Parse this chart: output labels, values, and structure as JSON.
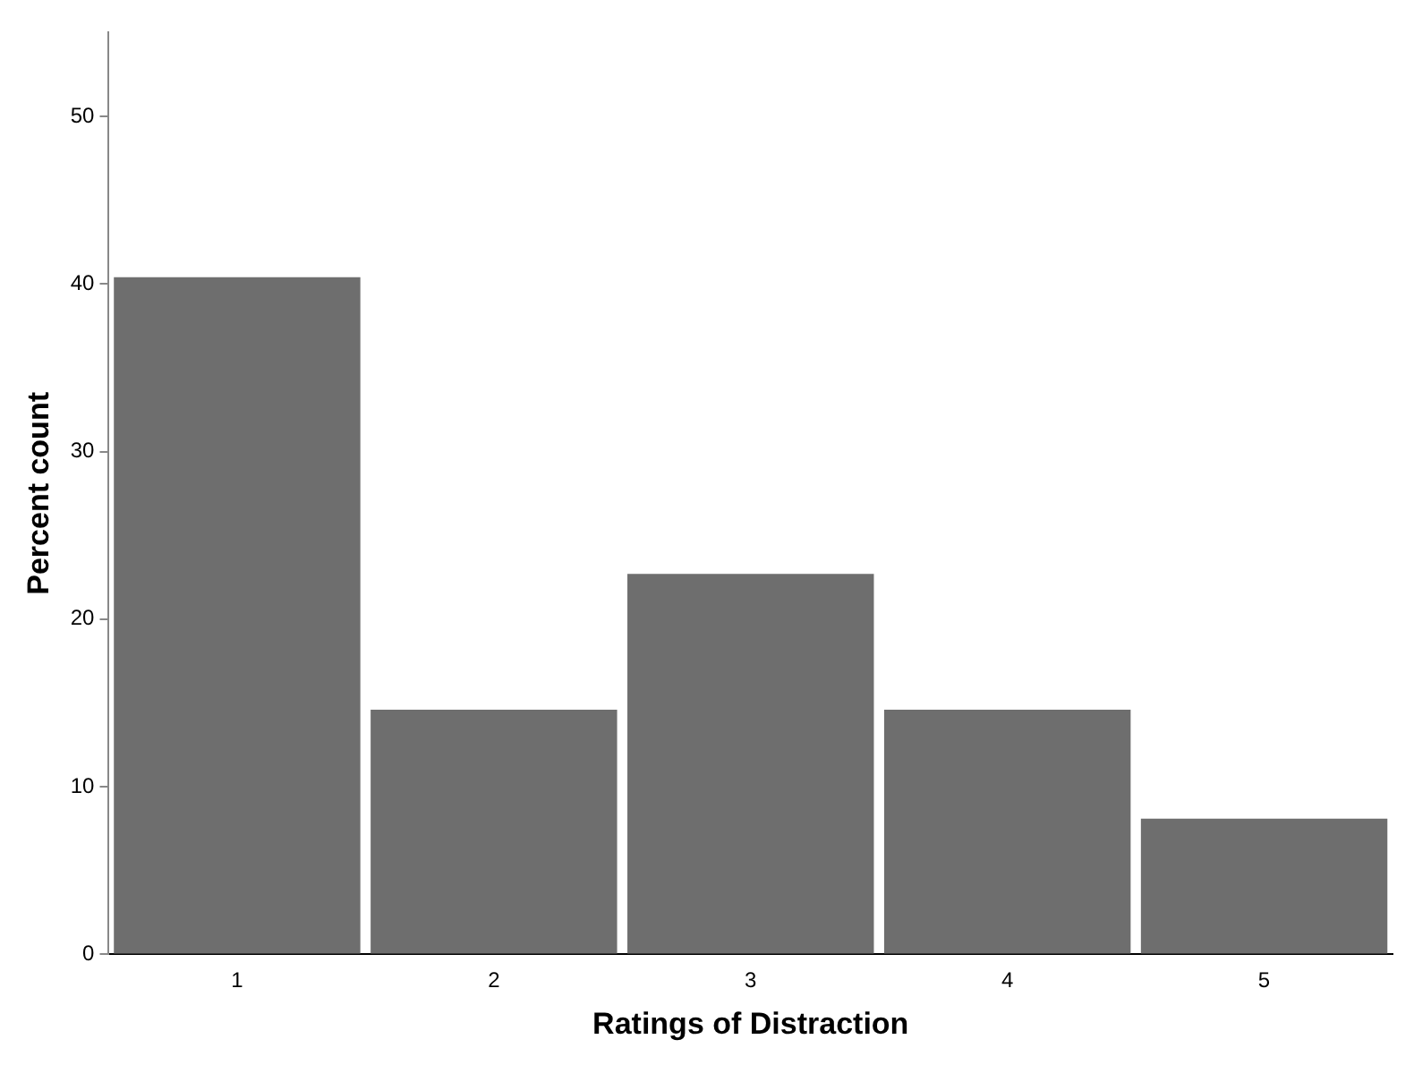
{
  "chart_data": {
    "type": "bar",
    "xlabel": "Ratings of Distraction",
    "ylabel": "Percent count",
    "categories": [
      "1",
      "2",
      "3",
      "4",
      "5"
    ],
    "values": [
      40.4,
      14.6,
      22.7,
      14.6,
      8.1
    ],
    "color": "#6e6e6e",
    "ylim": [
      0,
      55
    ],
    "yticks": [
      0,
      10,
      20,
      30,
      40,
      50
    ],
    "grid": false,
    "legend": false
  }
}
